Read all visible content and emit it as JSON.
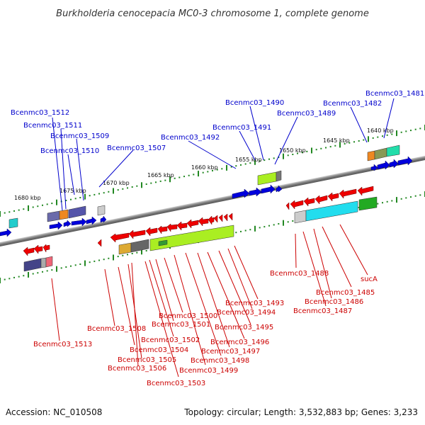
{
  "title": "Burkholderia cenocepacia MC0-3 chromosome 1, complete genome",
  "footer": {
    "accession": "Accession: NC_010508",
    "summary": "Topology: circular; Length: 3,532,883 bp; Genes: 3,233"
  },
  "scale_labels": [
    "1680 kbp",
    "1675 kbp",
    "1670 kbp",
    "1665 kbp",
    "1660 kbp",
    "1655 kbp",
    "1650 kbp",
    "1645 kbp",
    "1640 kbp"
  ],
  "forward_genes": [
    "Bcenmc03_1512",
    "Bcenmc03_1511",
    "Bcenmc03_1509",
    "Bcenmc03_1510",
    "Bcenmc03_1507",
    "Bcenmc03_1492",
    "Bcenmc03_1491",
    "Bcenmc03_1490",
    "Bcenmc03_1489",
    "Bcenmc03_1482",
    "Bcenmc03_1481"
  ],
  "reverse_genes": [
    "Bcenmc03_1513",
    "Bcenmc03_1508",
    "Bcenmc03_1504",
    "Bcenmc03_1505",
    "Bcenmc03_1506",
    "Bcenmc03_1503",
    "Bcenmc03_1502",
    "Bcenmc03_1501",
    "Bcenmc03_1500",
    "Bcenmc03_1499",
    "Bcenmc03_1498",
    "Bcenmc03_1497",
    "Bcenmc03_1496",
    "Bcenmc03_1495",
    "Bcenmc03_1494",
    "Bcenmc03_1493",
    "Bcenmc03_1488",
    "Bcenmc03_1485",
    "Bcenmc03_1486",
    "Bcenmc03_1487",
    "sucA"
  ],
  "colors": {
    "forward_gene": "#0000dd",
    "reverse_gene": "#ee0000",
    "backbone": "#888888",
    "tick": "#228822"
  }
}
